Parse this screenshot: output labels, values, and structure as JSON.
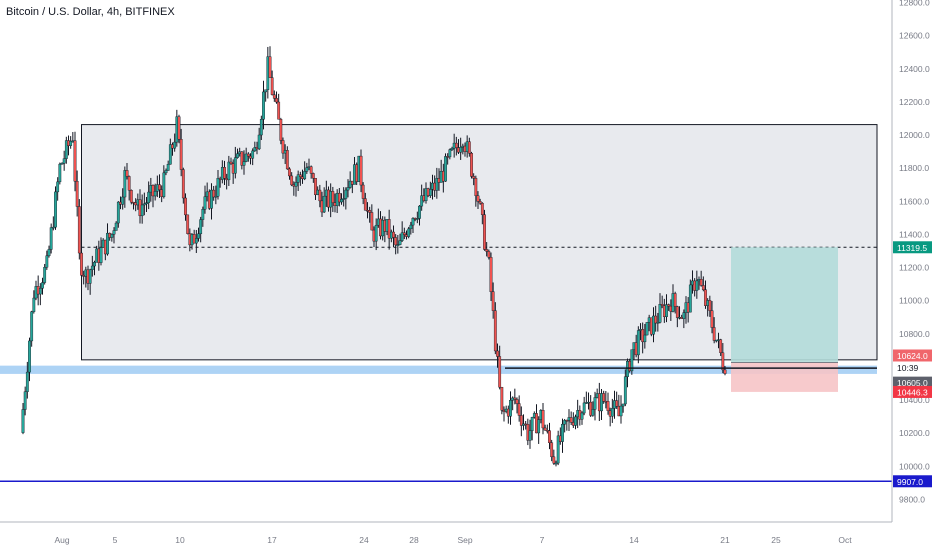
{
  "header": {
    "title": "Bitcoin / U.S. Dollar, 4h, BITFINEX"
  },
  "colors": {
    "up": "#26a69a",
    "down": "#ef5350",
    "wick": "#131722",
    "range_fill": "#e6e8ec",
    "support_band": "#9fcbf3",
    "support_line": "#1a1acc",
    "target_zone": "#b2dcd9",
    "stop_zone": "#f6c4c6",
    "target_label": "#089981",
    "stop_label": "#f23645",
    "current_label": "#5d606b",
    "entry_label": "#f0666b",
    "support_label": "#1a1acc"
  },
  "chart_data": {
    "type": "candlestick",
    "title": "Bitcoin / U.S. Dollar, 4h, BITFINEX",
    "xlabel": "",
    "ylabel": "",
    "ylim": [
      9720,
      12860
    ],
    "grid": false,
    "x_ticks": [
      "Aug",
      "5",
      "7",
      "10",
      "14",
      "17",
      "21",
      "24",
      "25",
      "28",
      "Sep",
      "Oct"
    ],
    "y_ticks": [
      9800,
      10000,
      10200,
      10400,
      10600,
      10800,
      11000,
      11200,
      11400,
      11600,
      11800,
      12000,
      12200,
      12400,
      12600,
      12800
    ],
    "y_tick_labels": [
      "9800.0",
      "10000.0",
      "10200.0",
      "10400.0",
      "10600.0",
      "10800.0",
      "11000.0",
      "11200.0",
      "11400.0",
      "11600.0",
      "11800.0",
      "12000.0",
      "12200.0",
      "12400.0",
      "12600.0",
      "12800.0"
    ],
    "price_labels": {
      "target": "11319.5",
      "entry": "10624.0",
      "countdown": "10:39",
      "current": "10605.0",
      "stop": "10446.3",
      "support": "9907.0"
    },
    "levels": {
      "range_high": 12060,
      "range_low": 10640,
      "range_mid": 11319.5,
      "support_band": [
        10555,
        10605
      ],
      "support": 9907,
      "entry": 10624,
      "target": 11319.5,
      "stop": 10446.3
    },
    "anchors": [
      [
        "2020-07-29",
        10200
      ],
      [
        "2020-07-30",
        11050
      ],
      [
        "2020-07-31",
        11200
      ],
      [
        "2020-08-01",
        11800
      ],
      [
        "2020-08-02",
        12000
      ],
      [
        "2020-08-02T12",
        11250
      ],
      [
        "2020-08-03",
        11150
      ],
      [
        "2020-08-05",
        11400
      ],
      [
        "2020-08-06",
        11750
      ],
      [
        "2020-08-07",
        11550
      ],
      [
        "2020-08-09",
        11700
      ],
      [
        "2020-08-10",
        12050
      ],
      [
        "2020-08-11",
        11300
      ],
      [
        "2020-08-12",
        11550
      ],
      [
        "2020-08-14",
        11800
      ],
      [
        "2020-08-15",
        11850
      ],
      [
        "2020-08-16",
        11900
      ],
      [
        "2020-08-17",
        12400
      ],
      [
        "2020-08-18",
        12000
      ],
      [
        "2020-08-19",
        11700
      ],
      [
        "2020-08-20",
        11800
      ],
      [
        "2020-08-21",
        11600
      ],
      [
        "2020-08-22",
        11600
      ],
      [
        "2020-08-23",
        11700
      ],
      [
        "2020-08-24",
        11800
      ],
      [
        "2020-08-25",
        11400
      ],
      [
        "2020-08-26",
        11450
      ],
      [
        "2020-08-27",
        11300
      ],
      [
        "2020-08-28",
        11500
      ],
      [
        "2020-08-29",
        11600
      ],
      [
        "2020-08-30",
        11700
      ],
      [
        "2020-09-01",
        12000
      ],
      [
        "2020-09-02",
        11700
      ],
      [
        "2020-09-03",
        11200
      ],
      [
        "2020-09-04",
        10300
      ],
      [
        "2020-09-05",
        10400
      ],
      [
        "2020-09-06",
        10200
      ],
      [
        "2020-09-07",
        10300
      ],
      [
        "2020-09-08",
        10050
      ],
      [
        "2020-09-09",
        10250
      ],
      [
        "2020-09-10",
        10350
      ],
      [
        "2020-09-12",
        10400
      ],
      [
        "2020-09-13",
        10300
      ],
      [
        "2020-09-14",
        10700
      ],
      [
        "2020-09-15",
        10800
      ],
      [
        "2020-09-16",
        10900
      ],
      [
        "2020-09-17",
        11000
      ],
      [
        "2020-09-18",
        10900
      ],
      [
        "2020-09-19",
        11150
      ],
      [
        "2020-09-20",
        10900
      ],
      [
        "2020-09-21",
        10624
      ]
    ]
  }
}
